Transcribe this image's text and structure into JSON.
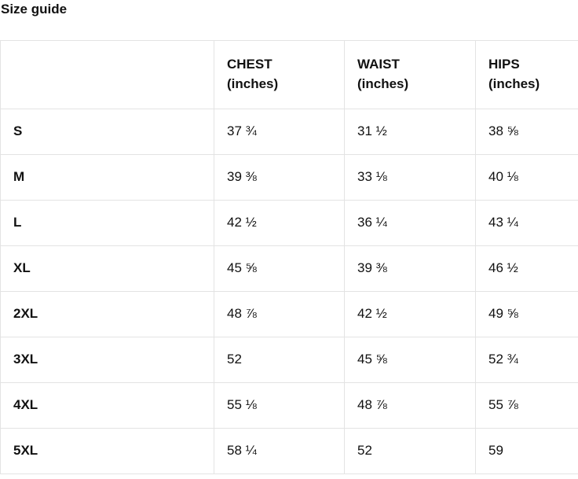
{
  "page_title": "Size guide",
  "table": {
    "corner_label": "",
    "columns": [
      {
        "name": "CHEST",
        "unit": "(inches)"
      },
      {
        "name": "WAIST",
        "unit": "(inches)"
      },
      {
        "name": "HIPS",
        "unit": "(inches)"
      }
    ],
    "rows": [
      {
        "size": "S",
        "chest": "37 ¾",
        "waist": "31 ½",
        "hips": "38 ⅝"
      },
      {
        "size": "M",
        "chest": "39 ⅜",
        "waist": "33 ⅛",
        "hips": "40 ⅛"
      },
      {
        "size": "L",
        "chest": "42 ½",
        "waist": "36 ¼",
        "hips": "43 ¼"
      },
      {
        "size": "XL",
        "chest": "45 ⅝",
        "waist": "39 ⅜",
        "hips": "46 ½"
      },
      {
        "size": "2XL",
        "chest": "48 ⅞",
        "waist": "42 ½",
        "hips": "49 ⅝"
      },
      {
        "size": "3XL",
        "chest": "52",
        "waist": "45 ⅝",
        "hips": "52 ¾"
      },
      {
        "size": "4XL",
        "chest": "55 ⅛",
        "waist": "48 ⅞",
        "hips": "55 ⅞"
      },
      {
        "size": "5XL",
        "chest": "58 ¼",
        "waist": "52",
        "hips": "59"
      }
    ]
  },
  "colors": {
    "text": "#111111",
    "border": "#e3e3e3",
    "background": "#ffffff"
  }
}
